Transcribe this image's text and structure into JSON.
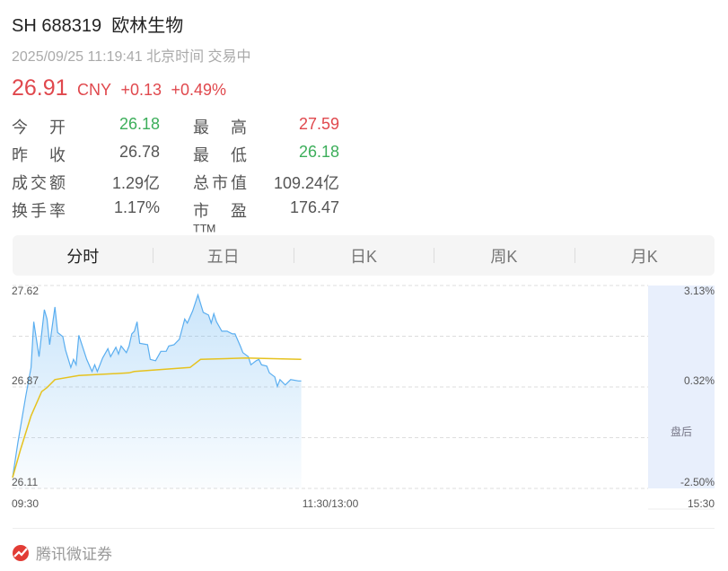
{
  "header": {
    "title": "SH 688319  欧林生物",
    "subtitle": "2025/09/25 11:19:41 北京时间 交易中",
    "price": "26.91",
    "currency": "CNY",
    "change": "+0.13",
    "change_pct": "+0.49%"
  },
  "stats": [
    {
      "label1": "今开",
      "value1": "26.18",
      "color1": "green",
      "label2": "最高",
      "value2": "27.59",
      "color2": "red"
    },
    {
      "label1": "昨收",
      "value1": "26.78",
      "color1": "",
      "label2": "最低",
      "value2": "26.18",
      "color2": "green"
    },
    {
      "label1": "成交额",
      "value1": "1.29亿",
      "color1": "",
      "label2": "总市值",
      "value2": "109.24亿",
      "color2": ""
    },
    {
      "label1": "换手率",
      "value1": "1.17%",
      "color1": "",
      "label2": "市盈ᵀᵀᴹ",
      "value2": "176.47",
      "color2": ""
    }
  ],
  "tabs": [
    {
      "label": "分时",
      "active": true
    },
    {
      "label": "五日",
      "active": false
    },
    {
      "label": "日K",
      "active": false
    },
    {
      "label": "周K",
      "active": false
    },
    {
      "label": "月K",
      "active": false
    }
  ],
  "colors": {
    "up": "#e0484d",
    "down": "#3cae5a",
    "price_line": "#5aaef0",
    "avg_line": "#e6c21e",
    "after_hours_bg": "#e8effc"
  },
  "chart_data": {
    "type": "line",
    "y_left_ticks": [
      "27.62",
      "26.87",
      "26.11"
    ],
    "y_right_ticks": [
      "3.13%",
      "0.32%",
      "-2.50%"
    ],
    "ylim": [
      26.11,
      27.62
    ],
    "x_ticks": [
      "09:30",
      "11:30/13:00",
      "15:30"
    ],
    "after_hours_label": "盘后",
    "grid": true,
    "price": [
      [
        "09:30",
        26.19
      ],
      [
        "09:32",
        26.45
      ],
      [
        "09:35",
        26.8
      ],
      [
        "09:37",
        27.01
      ],
      [
        "09:38",
        27.35
      ],
      [
        "09:40",
        27.09
      ],
      [
        "09:42",
        27.44
      ],
      [
        "09:43",
        27.37
      ],
      [
        "09:44",
        27.18
      ],
      [
        "09:46",
        27.46
      ],
      [
        "09:47",
        27.27
      ],
      [
        "09:49",
        27.24
      ],
      [
        "09:50",
        27.14
      ],
      [
        "09:52",
        27.01
      ],
      [
        "09:53",
        27.07
      ],
      [
        "09:54",
        27.03
      ],
      [
        "09:55",
        27.25
      ],
      [
        "09:58",
        27.07
      ],
      [
        "10:00",
        26.98
      ],
      [
        "10:01",
        27.03
      ],
      [
        "10:02",
        26.98
      ],
      [
        "10:04",
        27.08
      ],
      [
        "10:06",
        27.15
      ],
      [
        "10:07",
        27.09
      ],
      [
        "10:09",
        27.16
      ],
      [
        "10:10",
        27.11
      ],
      [
        "10:11",
        27.17
      ],
      [
        "10:13",
        27.12
      ],
      [
        "10:14",
        27.17
      ],
      [
        "10:15",
        27.26
      ],
      [
        "10:16",
        27.28
      ],
      [
        "10:17",
        27.35
      ],
      [
        "10:18",
        27.19
      ],
      [
        "10:21",
        27.18
      ],
      [
        "10:22",
        27.07
      ],
      [
        "10:24",
        27.06
      ],
      [
        "10:26",
        27.13
      ],
      [
        "10:28",
        27.13
      ],
      [
        "10:29",
        27.17
      ],
      [
        "10:31",
        27.18
      ],
      [
        "10:33",
        27.22
      ],
      [
        "10:35",
        27.37
      ],
      [
        "10:36",
        27.34
      ],
      [
        "10:38",
        27.43
      ],
      [
        "10:40",
        27.55
      ],
      [
        "10:42",
        27.42
      ],
      [
        "10:44",
        27.4
      ],
      [
        "10:45",
        27.34
      ],
      [
        "10:46",
        27.41
      ],
      [
        "10:47",
        27.35
      ],
      [
        "10:49",
        27.28
      ],
      [
        "10:51",
        27.28
      ],
      [
        "10:53",
        27.26
      ],
      [
        "10:54",
        27.26
      ],
      [
        "10:56",
        27.17
      ],
      [
        "10:57",
        27.12
      ],
      [
        "10:59",
        27.09
      ],
      [
        "11:00",
        27.03
      ],
      [
        "11:02",
        27.06
      ],
      [
        "11:03",
        27.07
      ],
      [
        "11:04",
        27.03
      ],
      [
        "11:06",
        27.02
      ],
      [
        "11:07",
        26.97
      ],
      [
        "11:09",
        26.94
      ],
      [
        "11:10",
        26.87
      ],
      [
        "11:11",
        26.92
      ],
      [
        "11:13",
        26.88
      ],
      [
        "11:14",
        26.9
      ],
      [
        "11:15",
        26.92
      ],
      [
        "11:18",
        26.91
      ],
      [
        "11:19",
        26.91
      ]
    ],
    "average": [
      [
        "09:30",
        26.19
      ],
      [
        "09:33",
        26.4
      ],
      [
        "09:37",
        26.65
      ],
      [
        "09:41",
        26.83
      ],
      [
        "09:43",
        26.86
      ],
      [
        "09:46",
        26.92
      ],
      [
        "09:55",
        26.95
      ],
      [
        "10:14",
        26.97
      ],
      [
        "10:16",
        26.98
      ],
      [
        "10:37",
        27.01
      ],
      [
        "10:41",
        27.07
      ],
      [
        "10:58",
        27.08
      ],
      [
        "11:19",
        27.07
      ]
    ]
  },
  "footer": {
    "brand": "腾讯微证券"
  }
}
